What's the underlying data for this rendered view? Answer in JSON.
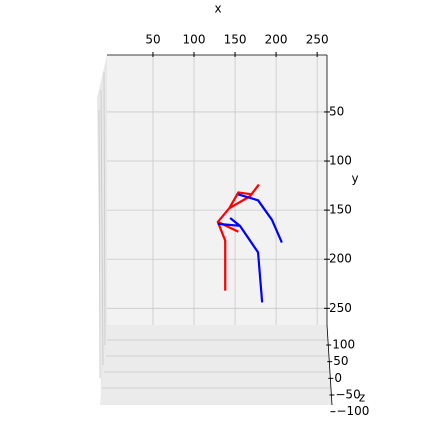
{
  "chart_data": {
    "type": "line3d",
    "xlabel": "x",
    "ylabel": "y",
    "zlabel": "z",
    "xlim": [
      -6,
      262
    ],
    "xticks": [
      50,
      100,
      150,
      200,
      250
    ],
    "ylim": [
      -8,
      267
    ],
    "yticks": [
      50,
      100,
      150,
      200,
      250
    ],
    "zlim": [
      -110,
      115
    ],
    "zticks": [
      100,
      50,
      0,
      {
        "value": -50,
        "label": "−50"
      },
      {
        "value": -100,
        "label": "−100"
      }
    ],
    "grid": true,
    "series": [
      {
        "color": "#ff0000",
        "x": [
          138,
          138,
          129,
          154,
          null,
          129,
          143,
          154,
          171,
          null,
          143,
          168,
          179
        ],
        "values": [
          232,
          181,
          162,
          172,
          null,
          162,
          148,
          132,
          134,
          null,
          148,
          136,
          124
        ]
      },
      {
        "color": "#0000ff",
        "x": [
          183,
          178,
          156,
          129,
          null,
          156,
          144,
          null,
          154,
          178,
          195,
          207
        ],
        "values": [
          244,
          193,
          166,
          164,
          null,
          166,
          158,
          null,
          134,
          140,
          160,
          183
        ]
      }
    ]
  }
}
